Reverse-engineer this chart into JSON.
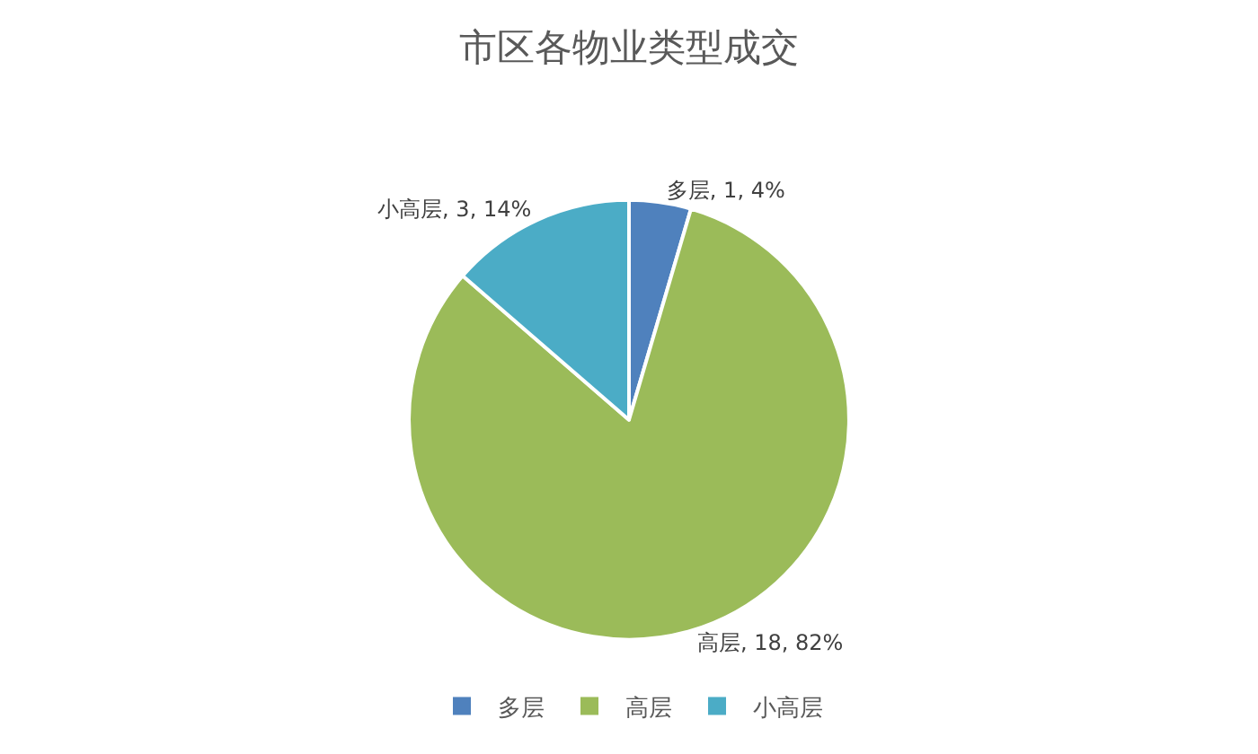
{
  "chart_data": {
    "type": "pie",
    "title": "市区各物业类型成交",
    "categories": [
      "多层",
      "高层",
      "小高层"
    ],
    "values": [
      1,
      18,
      3
    ],
    "colors": [
      "#4f81bd",
      "#9bbb59",
      "#4bacc6"
    ],
    "value_labels": [
      "多层, 1, 4%",
      "高层, 18, 82%",
      "小高层, 3, 14%"
    ],
    "legend": "bottom"
  }
}
